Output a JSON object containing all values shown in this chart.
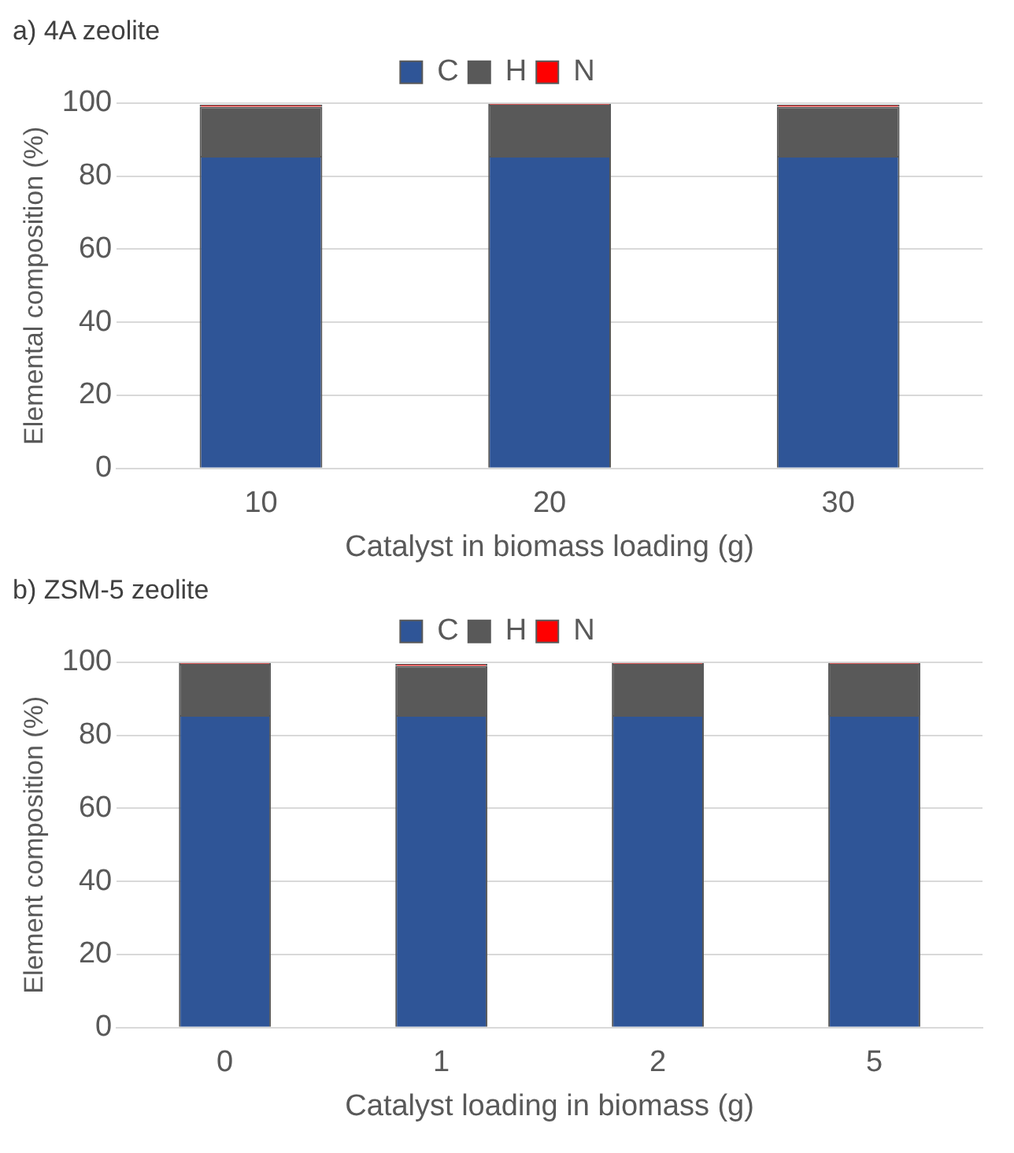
{
  "chart_data": [
    {
      "type": "bar",
      "title": "a) 4A zeolite",
      "xlabel": "Catalyst in biomass loading (g)",
      "ylabel": "Elemental composition (%)",
      "categories": [
        "10",
        "20",
        "30"
      ],
      "stacked": true,
      "ylim": [
        0,
        100
      ],
      "yticks": [
        0,
        20,
        40,
        60,
        80,
        100
      ],
      "grid": "y",
      "legend": "top",
      "series": [
        {
          "name": "C",
          "color": "#2f5597",
          "values": [
            85.5,
            85.5,
            85.5
          ]
        },
        {
          "name": "H",
          "color": "#595959",
          "values": [
            13.5,
            14,
            13.5
          ]
        },
        {
          "name": "N",
          "color": "#ff0000",
          "values": [
            0.5,
            0.3,
            0.5
          ]
        }
      ]
    },
    {
      "type": "bar",
      "title": "b) ZSM-5 zeolite",
      "xlabel": "Catalyst loading in biomass (g)",
      "ylabel": "Element composition (%)",
      "categories": [
        "0",
        "1",
        "2",
        "5"
      ],
      "stacked": true,
      "ylim": [
        0,
        100
      ],
      "yticks": [
        0,
        20,
        40,
        60,
        80,
        100
      ],
      "grid": "y",
      "legend": "top",
      "series": [
        {
          "name": "C",
          "color": "#2f5597",
          "values": [
            85.5,
            85.5,
            85.5,
            85.5
          ]
        },
        {
          "name": "H",
          "color": "#595959",
          "values": [
            14,
            13.5,
            14,
            14
          ]
        },
        {
          "name": "N",
          "color": "#ff0000",
          "values": [
            0.3,
            0.5,
            0.3,
            0.3
          ]
        }
      ]
    }
  ]
}
